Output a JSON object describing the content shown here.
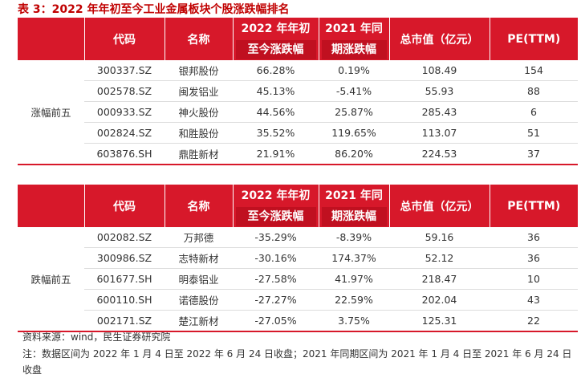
{
  "title": "表 3：2022 年年初至今工业金属板块个股涨跌幅排名",
  "tables": [
    {
      "header": [
        "代码",
        "名称",
        [
          "2022 年年初",
          "至今涨跌幅"
        ],
        [
          "2021 年同",
          "期涨跌幅"
        ],
        "总市值（亿元）",
        "PE(TTM)"
      ],
      "group": "涨幅前五",
      "rows": [
        [
          "300337.SZ",
          "银邦股份",
          "66.28%",
          "0.19%",
          "108.49",
          "154"
        ],
        [
          "002578.SZ",
          "闽发铝业",
          "45.13%",
          "-5.41%",
          "55.93",
          "88"
        ],
        [
          "000933.SZ",
          "神火股份",
          "44.56%",
          "25.87%",
          "285.43",
          "6"
        ],
        [
          "002824.SZ",
          "和胜股份",
          "35.52%",
          "119.65%",
          "113.07",
          "51"
        ],
        [
          "603876.SH",
          "鼎胜新材",
          "21.91%",
          "86.20%",
          "224.53",
          "37"
        ]
      ]
    },
    {
      "header": [
        "代码",
        "名称",
        [
          "2022 年年初",
          "至今涨跌幅"
        ],
        [
          "2021 年同",
          "期涨跌幅"
        ],
        "总市值（亿元）",
        "PE(TTM)"
      ],
      "group": "跌幅前五",
      "rows": [
        [
          "002082.SZ",
          "万邦德",
          "-35.29%",
          "-8.39%",
          "59.16",
          "36"
        ],
        [
          "300986.SZ",
          "志特新材",
          "-30.16%",
          "174.37%",
          "52.12",
          "36"
        ],
        [
          "601677.SH",
          "明泰铝业",
          "-27.58%",
          "41.97%",
          "218.47",
          "10"
        ],
        [
          "600110.SH",
          "诺德股份",
          "-27.27%",
          "22.59%",
          "202.04",
          "43"
        ],
        [
          "002171.SZ",
          "楚江新材",
          "-27.05%",
          "3.75%",
          "125.31",
          "22"
        ]
      ]
    }
  ],
  "source": "资料来源：wind，民生证券研究院",
  "note": "注：数据区间为 2022 年 1 月 4 日至 2022 年 6 月 24 日收盘；2021 年同期区间为 2021 年 1 月 4 日至 2021 年 6 月 24 日收盘"
}
